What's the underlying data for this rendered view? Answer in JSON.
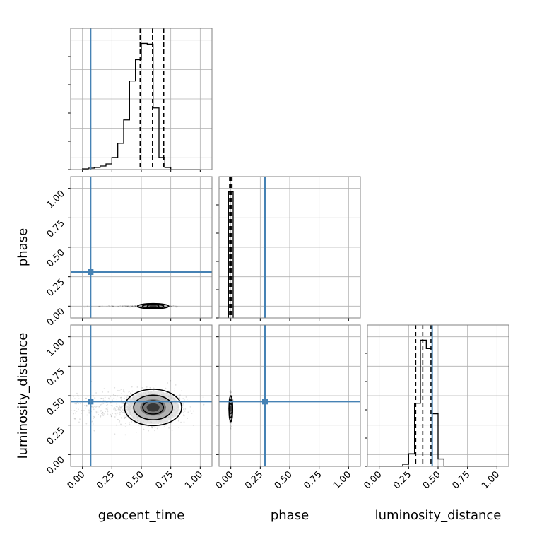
{
  "chart_data": {
    "type": "corner",
    "parameters": [
      "geocent_time",
      "phase",
      "luminosity_distance"
    ],
    "axis_range": [
      -0.1,
      1.1
    ],
    "tick_values": [
      0.0,
      0.25,
      0.5,
      0.75,
      1.0
    ],
    "tick_labels": [
      "0.00",
      "0.25",
      "0.50",
      "0.75",
      "1.00"
    ],
    "grid": true,
    "truth_color": "#4682b4",
    "truths": {
      "geocent_time": 0.07,
      "phase": 0.29,
      "luminosity_distance": 0.45
    },
    "quantiles": {
      "geocent_time": [
        0.49,
        0.595,
        0.69
      ],
      "phase": [
        -0.01,
        0.0,
        0.01
      ],
      "luminosity_distance": [
        0.31,
        0.37,
        0.44
      ]
    },
    "histograms": {
      "geocent_time": {
        "edges": [
          0.0,
          0.05,
          0.1,
          0.15,
          0.2,
          0.25,
          0.3,
          0.35,
          0.4,
          0.45,
          0.5,
          0.55,
          0.6,
          0.65,
          0.7,
          0.75,
          0.8,
          0.85,
          0.9,
          0.95,
          1.0
        ],
        "values": [
          1,
          2,
          3,
          5,
          8,
          17,
          37,
          70,
          125,
          155,
          178,
          177,
          87,
          17,
          3,
          0,
          0,
          0,
          0,
          0
        ]
      },
      "phase": {
        "edges": [
          -0.02,
          -0.01,
          0.0,
          0.01,
          0.02
        ],
        "values": [
          100,
          100,
          100,
          100
        ]
      },
      "luminosity_distance": {
        "edges": [
          0.0,
          0.05,
          0.1,
          0.15,
          0.2,
          0.25,
          0.3,
          0.35,
          0.4,
          0.45,
          0.5,
          0.55,
          0.6,
          0.65,
          0.7,
          0.75,
          0.8,
          0.85,
          0.9,
          0.95,
          1.0
        ],
        "values": [
          0,
          0,
          0,
          0,
          2,
          12,
          60,
          120,
          112,
          50,
          7,
          0,
          0,
          0,
          0,
          0,
          0,
          0,
          0,
          0
        ]
      }
    },
    "posterior_2d": {
      "phase_vs_geocent_time": {
        "center": [
          0.6,
          0.0
        ],
        "sigma": [
          0.06,
          0.01
        ]
      },
      "luminosity_distance_vs_geocent_time": {
        "center": [
          0.6,
          0.4
        ],
        "sigma": [
          0.11,
          0.07
        ]
      },
      "luminosity_distance_vs_phase": {
        "center": [
          0.0,
          0.39
        ],
        "sigma": [
          0.006,
          0.05
        ]
      }
    }
  }
}
